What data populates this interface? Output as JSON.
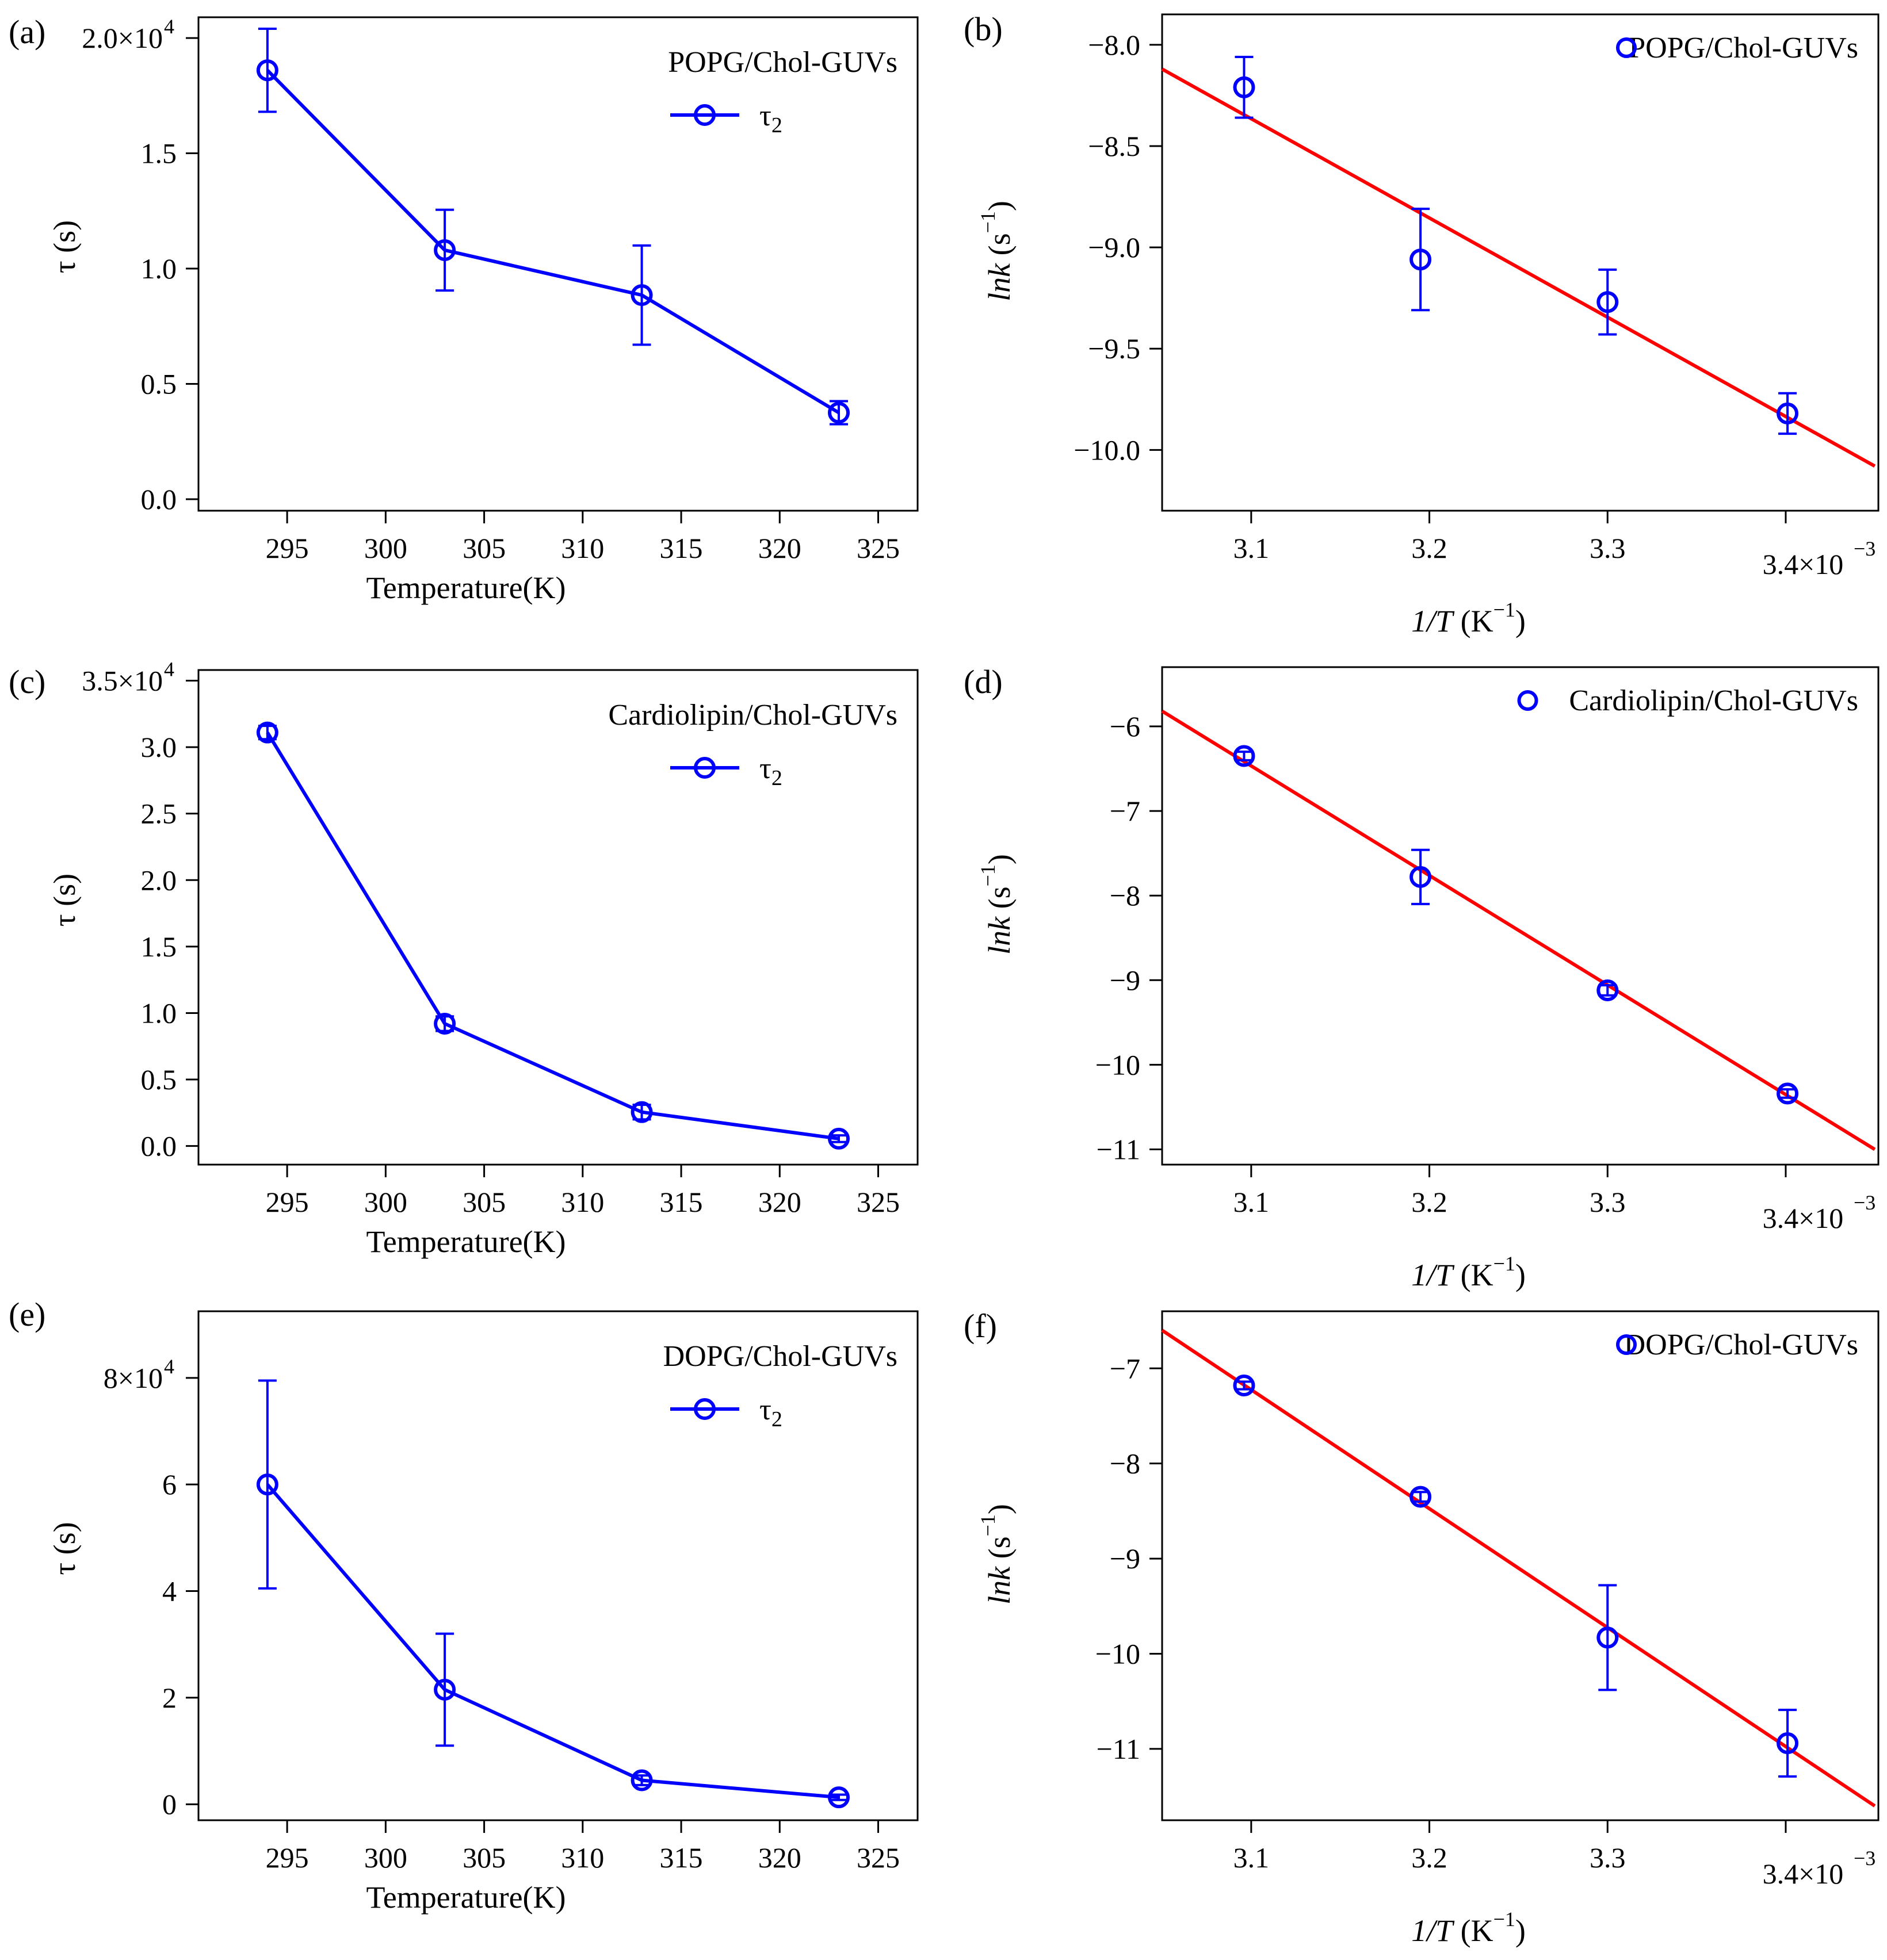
{
  "colors": {
    "data": "#0000ff",
    "fit": "#ff0000",
    "axis": "#000000"
  },
  "chart_data": [
    {
      "id": "a",
      "panel_label": "(a)",
      "type": "line",
      "legend_title": "POPG/Chol-GUVs",
      "series_name": "τ",
      "series_sub": "2",
      "xlabel": "Temperature(K)",
      "ylabel": "τ (s)",
      "x": [
        294,
        303,
        313,
        323
      ],
      "y": [
        18600,
        10800,
        8850,
        3750
      ],
      "err": [
        1800,
        1750,
        2150,
        500
      ],
      "xlim": [
        290.5,
        327
      ],
      "ylim": [
        -500,
        20900
      ],
      "xticks": [
        295,
        300,
        305,
        310,
        315,
        320,
        325
      ],
      "xtick_labels": [
        "295",
        "300",
        "305",
        "310",
        "315",
        "320",
        "325"
      ],
      "yticks": [
        0,
        5000,
        10000,
        15000,
        20000
      ],
      "ytick_labels": [
        "0.0",
        "0.5",
        "1.0",
        "1.5",
        "2.0×10"
      ],
      "ytick_sup": "4",
      "xtick_sup": ""
    },
    {
      "id": "b",
      "panel_label": "(b)",
      "type": "scatter",
      "legend_title": "POPG/Chol-GUVs",
      "xlabel": "1/T",
      "xlabel_unit": "(K",
      "xlabel_unit_sup": "−1",
      "xlabel_unit_end": ")",
      "ylabel": "lnk",
      "ylabel_unit": " (s",
      "ylabel_unit_sup": "−1",
      "ylabel_unit_end": ")",
      "x": [
        0.003096,
        0.003195,
        0.0033,
        0.003401
      ],
      "y": [
        -8.21,
        -9.06,
        -9.27,
        -9.82
      ],
      "err": [
        0.15,
        0.25,
        0.16,
        0.1
      ],
      "fit": {
        "x": [
          0.00305,
          0.00345
        ],
        "y": [
          -8.12,
          -10.08
        ]
      },
      "xlim": [
        0.00305,
        0.003452
      ],
      "ylim": [
        -10.3,
        -7.85
      ],
      "xticks": [
        0.0031,
        0.0032,
        0.0033,
        0.0034
      ],
      "xtick_labels": [
        "3.1",
        "3.2",
        "3.3",
        "3.4×10"
      ],
      "xtick_sup": "−3",
      "yticks": [
        -8.0,
        -8.5,
        -9.0,
        -9.5,
        -10.0
      ],
      "ytick_labels": [
        "−8.0",
        "−8.5",
        "−9.0",
        "−9.5",
        "−10.0"
      ],
      "ytick_sup": ""
    },
    {
      "id": "c",
      "panel_label": "(c)",
      "type": "line",
      "legend_title": "Cardiolipin/Chol-GUVs",
      "series_name": "τ",
      "series_sub": "2",
      "xlabel": "Temperature(K)",
      "ylabel": "τ (s)",
      "x": [
        294,
        303,
        313,
        323
      ],
      "y": [
        31100,
        9200,
        2550,
        550
      ],
      "err": [
        500,
        550,
        550,
        250
      ],
      "xlim": [
        290.5,
        327
      ],
      "ylim": [
        -1400,
        35800
      ],
      "xticks": [
        295,
        300,
        305,
        310,
        315,
        320,
        325
      ],
      "xtick_labels": [
        "295",
        "300",
        "305",
        "310",
        "315",
        "320",
        "325"
      ],
      "yticks": [
        0,
        5000,
        10000,
        15000,
        20000,
        25000,
        30000,
        35000
      ],
      "ytick_labels": [
        "0.0",
        "0.5",
        "1.0",
        "1.5",
        "2.0",
        "2.5",
        "3.0",
        "3.5×10"
      ],
      "ytick_sup": "4",
      "xtick_sup": ""
    },
    {
      "id": "d",
      "panel_label": "(d)",
      "type": "scatter",
      "legend_title": "Cardiolipin/Chol-GUVs",
      "xlabel": "1/T",
      "xlabel_unit": "(K",
      "xlabel_unit_sup": "−1",
      "xlabel_unit_end": ")",
      "ylabel": "lnk",
      "ylabel_unit": " (s",
      "ylabel_unit_sup": "−1",
      "ylabel_unit_end": ")",
      "x": [
        0.003096,
        0.003195,
        0.0033,
        0.003401
      ],
      "y": [
        -6.35,
        -7.78,
        -9.12,
        -10.34
      ],
      "err": [
        0.05,
        0.32,
        0.06,
        0.05
      ],
      "fit": {
        "x": [
          0.00305,
          0.00345
        ],
        "y": [
          -5.82,
          -11.0
        ]
      },
      "xlim": [
        0.00305,
        0.003452
      ],
      "ylim": [
        -11.18,
        -5.3
      ],
      "xticks": [
        0.0031,
        0.0032,
        0.0033,
        0.0034
      ],
      "xtick_labels": [
        "3.1",
        "3.2",
        "3.3",
        "3.4×10"
      ],
      "xtick_sup": "−3",
      "yticks": [
        -6,
        -7,
        -8,
        -9,
        -10,
        -11
      ],
      "ytick_labels": [
        "−6",
        "−7",
        "−8",
        "−9",
        "−10",
        "−11"
      ],
      "ytick_sup": ""
    },
    {
      "id": "e",
      "panel_label": "(e)",
      "type": "line",
      "legend_title": "DOPG/Chol-GUVs",
      "series_name": "τ",
      "series_sub": "2",
      "xlabel": "Temperature(K)",
      "ylabel": "τ (s)",
      "x": [
        294,
        303,
        313,
        323
      ],
      "y": [
        60000,
        21500,
        4500,
        1300
      ],
      "err": [
        19500,
        10500,
        900,
        500
      ],
      "xlim": [
        290.5,
        327
      ],
      "ylim": [
        -3000,
        92500
      ],
      "xticks": [
        295,
        300,
        305,
        310,
        315,
        320,
        325
      ],
      "xtick_labels": [
        "295",
        "300",
        "305",
        "310",
        "315",
        "320",
        "325"
      ],
      "yticks": [
        0,
        20000,
        40000,
        60000,
        80000
      ],
      "ytick_labels": [
        "0",
        "2",
        "4",
        "6",
        "8×10"
      ],
      "ytick_sup": "4",
      "xtick_sup": ""
    },
    {
      "id": "f",
      "panel_label": "(f)",
      "type": "scatter",
      "legend_title": "DOPG/Chol-GUVs",
      "xlabel": "1/T",
      "xlabel_unit": "(K",
      "xlabel_unit_sup": "−1",
      "xlabel_unit_end": ")",
      "ylabel": "lnk",
      "ylabel_unit": " (s",
      "ylabel_unit_sup": "−1",
      "ylabel_unit_end": ")",
      "x": [
        0.003096,
        0.003195,
        0.0033,
        0.003401
      ],
      "y": [
        -7.18,
        -8.35,
        -9.83,
        -10.94
      ],
      "err": [
        0.04,
        0.05,
        0.55,
        0.35
      ],
      "fit": {
        "x": [
          0.00305,
          0.00345
        ],
        "y": [
          -6.6,
          -11.6
        ]
      },
      "xlim": [
        0.00305,
        0.003452
      ],
      "ylim": [
        -11.75,
        -6.4
      ],
      "xticks": [
        0.0031,
        0.0032,
        0.0033,
        0.0034
      ],
      "xtick_labels": [
        "3.1",
        "3.2",
        "3.3",
        "3.4×10"
      ],
      "xtick_sup": "−3",
      "yticks": [
        -7,
        -8,
        -9,
        -10,
        -11
      ],
      "ytick_labels": [
        "−7",
        "−8",
        "−9",
        "−10",
        "−11"
      ],
      "ytick_sup": ""
    }
  ]
}
